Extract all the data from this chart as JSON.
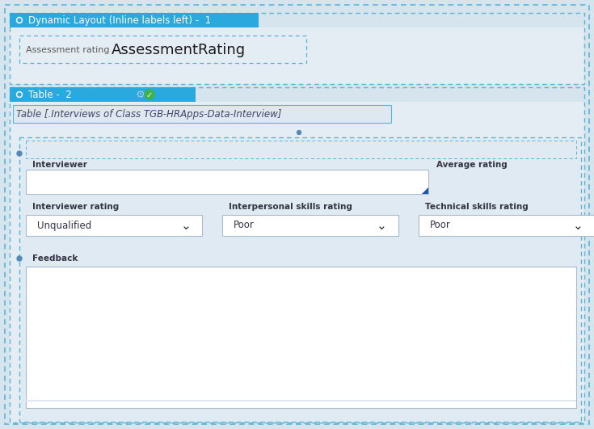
{
  "bg_color": "#d6e4ed",
  "outer_border_color": "#5ab4d6",
  "section1": {
    "header_bg": "#29a9de",
    "header_text": "Dynamic Layout (Inline labels left) -  1",
    "header_text_color": "#ffffff",
    "header_font_size": 8.5,
    "circle_color": "#ffffff",
    "body_bg": "#e4edf3",
    "label_text": "Assessment rating",
    "label_font_size": 8,
    "value_text": "AssessmentRating",
    "value_font_size": 13,
    "inner_border_color": "#5ab4d6"
  },
  "section2": {
    "header_bg": "#29a9de",
    "header_text": "Table -  2",
    "header_text_color": "#ffffff",
    "header_font_size": 8.5,
    "circle_color": "#ffffff",
    "body_bg": "#e4edf3",
    "table_label": "Table [.Interviews of Class TGB-HRApps-Data-Interview]",
    "table_label_font_size": 8.5,
    "inner_border_color": "#5ab4d6",
    "fields": {
      "interviewer_label": "Interviewer",
      "avg_rating_label": "Average rating",
      "interviewer_rating_label": "Interviewer rating",
      "interpersonal_label": "Interpersonal skills rating",
      "technical_label": "Technical skills rating",
      "feedback_label": "Feedback",
      "dropdown1_value": "Unqualified",
      "dropdown2_value": "Poor",
      "dropdown3_value": "Poor"
    },
    "field_font_size": 7.5,
    "dropdown_font_size": 8.5
  }
}
